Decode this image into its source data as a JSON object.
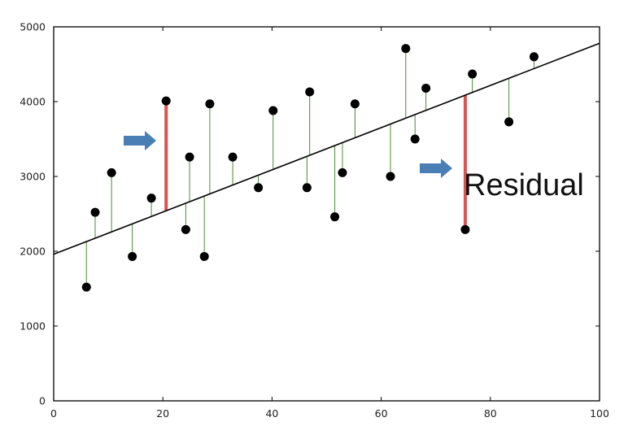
{
  "chart_data": {
    "type": "scatter",
    "title": "",
    "xlabel": "",
    "ylabel": "",
    "xlim": [
      0,
      100
    ],
    "ylim": [
      0,
      5000
    ],
    "xticks": [
      0,
      20,
      40,
      60,
      80,
      100
    ],
    "yticks": [
      0,
      1000,
      2000,
      3000,
      4000,
      5000
    ],
    "grid": false,
    "regression_line": {
      "intercept": 1960,
      "slope": 28.2
    },
    "points": [
      {
        "x": 6,
        "y": 1520
      },
      {
        "x": 7.6,
        "y": 2520
      },
      {
        "x": 10.6,
        "y": 3050
      },
      {
        "x": 14.4,
        "y": 1930
      },
      {
        "x": 17.9,
        "y": 2710
      },
      {
        "x": 20.6,
        "y": 4010,
        "highlight": true
      },
      {
        "x": 24.2,
        "y": 2290
      },
      {
        "x": 24.9,
        "y": 3260
      },
      {
        "x": 27.6,
        "y": 1930
      },
      {
        "x": 28.6,
        "y": 3970
      },
      {
        "x": 32.8,
        "y": 3260
      },
      {
        "x": 37.5,
        "y": 2850
      },
      {
        "x": 40.2,
        "y": 3880
      },
      {
        "x": 46.4,
        "y": 2850
      },
      {
        "x": 46.9,
        "y": 4130
      },
      {
        "x": 51.5,
        "y": 2460
      },
      {
        "x": 52.9,
        "y": 3050
      },
      {
        "x": 55.2,
        "y": 3970
      },
      {
        "x": 61.7,
        "y": 3000
      },
      {
        "x": 64.5,
        "y": 4710
      },
      {
        "x": 66.2,
        "y": 3500
      },
      {
        "x": 68.2,
        "y": 4180
      },
      {
        "x": 75.4,
        "y": 2290,
        "highlight": true
      },
      {
        "x": 76.7,
        "y": 4370
      },
      {
        "x": 83.4,
        "y": 3730
      },
      {
        "x": 88,
        "y": 4600
      }
    ],
    "annotation": {
      "text": "Residual"
    },
    "colors": {
      "points": "#000000",
      "line": "#000000",
      "residual": "#4a8a35",
      "highlight_residual": "#d9534f",
      "arrow": "#4a7fb5"
    }
  }
}
